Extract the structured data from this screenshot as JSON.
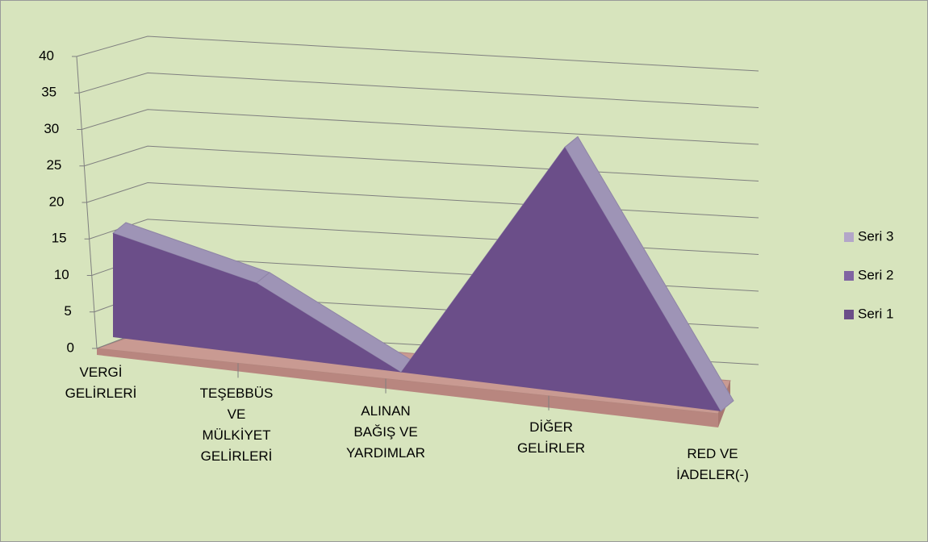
{
  "chart_data": {
    "type": "area3d",
    "categories": [
      "VERGİ GELİRLERİ",
      "TEŞEBBÜS VE MÜLKİYET GELİRLERİ",
      "ALINAN BAĞIŞ VE YARDIMLAR",
      "DİĞER GELİRLER",
      "RED VE İADELER(-)"
    ],
    "series": [
      {
        "name": "Seri 1",
        "color": "#6b4e89",
        "values": [
          15,
          10,
          0,
          32,
          0
        ]
      },
      {
        "name": "Seri 2",
        "color": "#8064a2",
        "values": [
          0,
          0,
          0,
          0,
          0
        ]
      },
      {
        "name": "Seri 3",
        "color": "#b3a6c9",
        "values": [
          0,
          0,
          0,
          0,
          0
        ]
      }
    ],
    "ylim": [
      0,
      40
    ],
    "yticks": [
      0,
      5,
      10,
      15,
      20,
      25,
      30,
      35,
      40
    ],
    "grid": true,
    "legend": "right"
  }
}
